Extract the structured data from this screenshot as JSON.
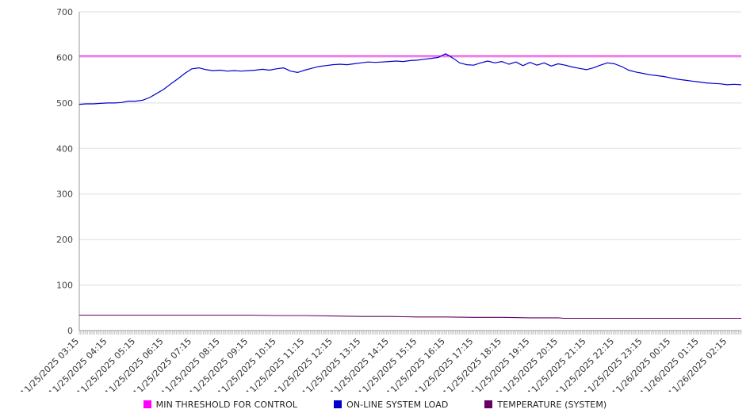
{
  "chart_data": {
    "type": "line",
    "title": "",
    "xlabel": "",
    "ylabel": "",
    "grid": true,
    "legend_position": "bottom",
    "ylim": [
      0,
      700
    ],
    "yticks": [
      0,
      100,
      200,
      300,
      400,
      500,
      600,
      700
    ],
    "x_span_hours": 23.5,
    "x_labels": [
      "11/25/2025 03:15",
      "11/25/2025 04:15",
      "11/25/2025 05:15",
      "11/25/2025 06:15",
      "11/25/2025 07:15",
      "11/25/2025 08:15",
      "11/25/2025 09:15",
      "11/25/2025 10:15",
      "11/25/2025 11:15",
      "11/25/2025 12:15",
      "11/25/2025 13:15",
      "11/25/2025 14:15",
      "11/25/2025 15:15",
      "11/25/2025 16:15",
      "11/25/2025 17:15",
      "11/25/2025 18:15",
      "11/25/2025 19:15",
      "11/25/2025 20:15",
      "11/25/2025 21:15",
      "11/25/2025 22:15",
      "11/25/2025 23:15",
      "11/26/2025 00:15",
      "11/26/2025 01:15",
      "11/26/2025 02:15"
    ],
    "series": [
      {
        "name": "MIN THRESHOLD FOR CONTROL",
        "color": "#ff00ff",
        "width": 1.4,
        "points": [
          [
            0,
            603
          ],
          [
            23.5,
            603
          ]
        ]
      },
      {
        "name": "ON-LINE SYSTEM LOAD",
        "color": "#0000cd",
        "width": 1.2,
        "points": [
          [
            0,
            497
          ],
          [
            0.25,
            498
          ],
          [
            0.5,
            498
          ],
          [
            0.75,
            499
          ],
          [
            1,
            500
          ],
          [
            1.25,
            500
          ],
          [
            1.5,
            501
          ],
          [
            1.75,
            504
          ],
          [
            2,
            504
          ],
          [
            2.25,
            506
          ],
          [
            2.5,
            512
          ],
          [
            2.75,
            521
          ],
          [
            3,
            530
          ],
          [
            3.25,
            542
          ],
          [
            3.5,
            553
          ],
          [
            3.75,
            565
          ],
          [
            4,
            575
          ],
          [
            4.25,
            577
          ],
          [
            4.5,
            573
          ],
          [
            4.75,
            571
          ],
          [
            5,
            572
          ],
          [
            5.25,
            570
          ],
          [
            5.5,
            571
          ],
          [
            5.75,
            570
          ],
          [
            6,
            571
          ],
          [
            6.25,
            572
          ],
          [
            6.5,
            574
          ],
          [
            6.75,
            572
          ],
          [
            7,
            575
          ],
          [
            7.25,
            577
          ],
          [
            7.5,
            570
          ],
          [
            7.75,
            567
          ],
          [
            8,
            572
          ],
          [
            8.25,
            576
          ],
          [
            8.5,
            580
          ],
          [
            8.75,
            582
          ],
          [
            9,
            584
          ],
          [
            9.25,
            585
          ],
          [
            9.5,
            584
          ],
          [
            9.75,
            586
          ],
          [
            10,
            588
          ],
          [
            10.25,
            590
          ],
          [
            10.5,
            589
          ],
          [
            10.75,
            590
          ],
          [
            11,
            591
          ],
          [
            11.25,
            592
          ],
          [
            11.5,
            591
          ],
          [
            11.75,
            593
          ],
          [
            12,
            594
          ],
          [
            12.25,
            596
          ],
          [
            12.5,
            598
          ],
          [
            12.75,
            600
          ],
          [
            12.9,
            605
          ],
          [
            13,
            608
          ],
          [
            13.15,
            603
          ],
          [
            13.3,
            597
          ],
          [
            13.5,
            588
          ],
          [
            13.75,
            584
          ],
          [
            14,
            583
          ],
          [
            14.25,
            588
          ],
          [
            14.5,
            592
          ],
          [
            14.75,
            588
          ],
          [
            15,
            591
          ],
          [
            15.25,
            585
          ],
          [
            15.5,
            590
          ],
          [
            15.75,
            582
          ],
          [
            16,
            589
          ],
          [
            16.25,
            583
          ],
          [
            16.5,
            588
          ],
          [
            16.75,
            581
          ],
          [
            17,
            586
          ],
          [
            17.25,
            583
          ],
          [
            17.5,
            579
          ],
          [
            17.75,
            576
          ],
          [
            18,
            573
          ],
          [
            18.25,
            577
          ],
          [
            18.5,
            583
          ],
          [
            18.75,
            588
          ],
          [
            19,
            586
          ],
          [
            19.25,
            580
          ],
          [
            19.5,
            572
          ],
          [
            19.75,
            568
          ],
          [
            20,
            565
          ],
          [
            20.25,
            562
          ],
          [
            20.5,
            560
          ],
          [
            20.75,
            558
          ],
          [
            21,
            555
          ],
          [
            21.25,
            552
          ],
          [
            21.5,
            550
          ],
          [
            21.75,
            548
          ],
          [
            22,
            546
          ],
          [
            22.25,
            544
          ],
          [
            22.5,
            543
          ],
          [
            22.75,
            542
          ],
          [
            23,
            540
          ],
          [
            23.25,
            541
          ],
          [
            23.5,
            540
          ]
        ]
      },
      {
        "name": "TEMPERATURE (SYSTEM)",
        "color": "#660066",
        "width": 1.1,
        "points": [
          [
            0,
            34
          ],
          [
            3,
            34
          ],
          [
            6,
            34
          ],
          [
            7,
            33
          ],
          [
            8,
            33
          ],
          [
            9,
            32
          ],
          [
            10,
            31
          ],
          [
            11,
            31
          ],
          [
            12,
            30
          ],
          [
            13,
            30
          ],
          [
            14,
            29
          ],
          [
            15,
            29
          ],
          [
            16,
            28
          ],
          [
            17,
            28
          ],
          [
            17.2,
            27
          ],
          [
            20,
            27
          ],
          [
            23.5,
            27
          ]
        ]
      }
    ]
  }
}
